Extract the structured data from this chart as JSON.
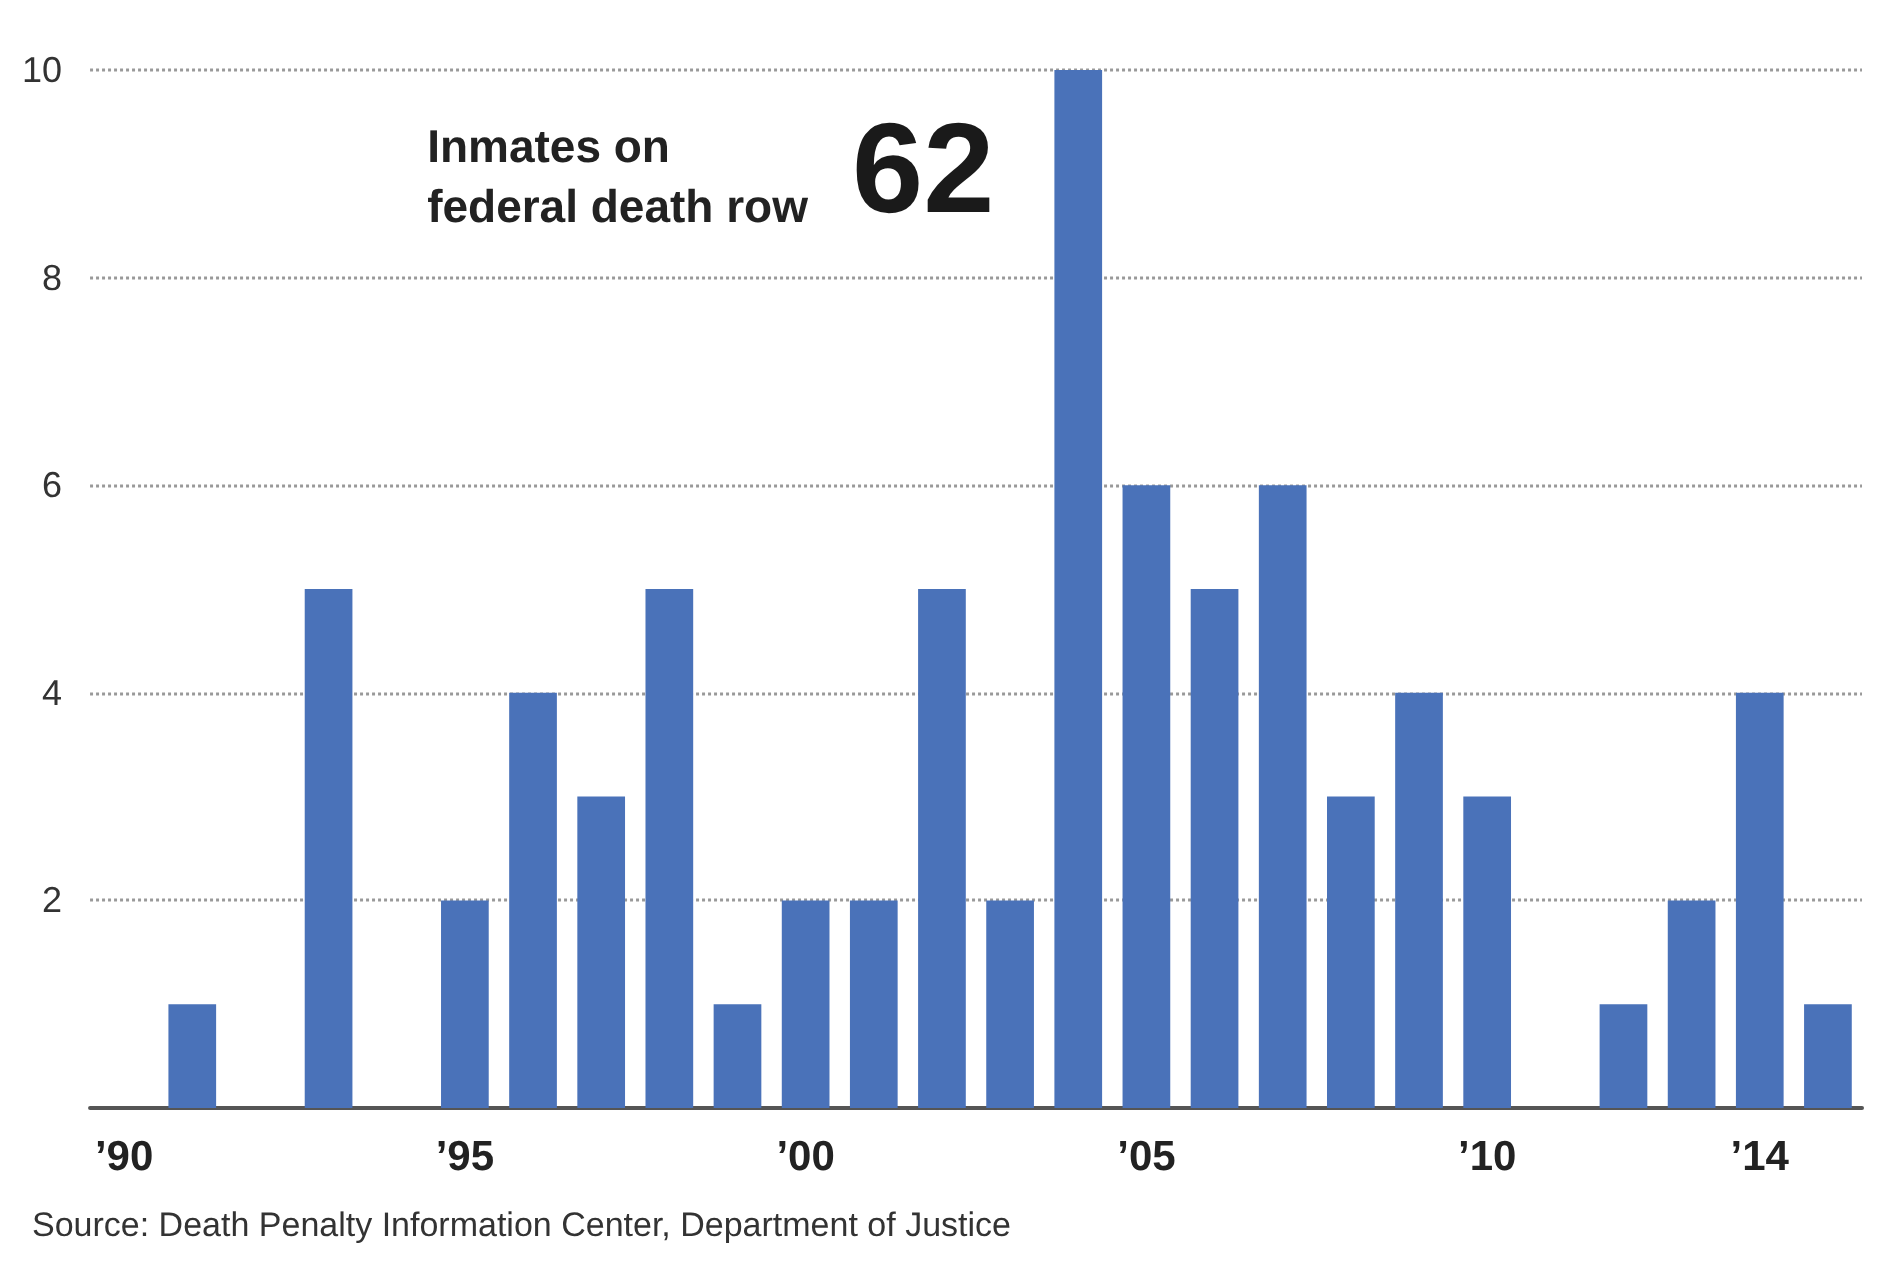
{
  "chart_data": {
    "type": "bar",
    "categories": [
      "’90",
      null,
      null,
      null,
      null,
      "’95",
      null,
      null,
      null,
      null,
      "’00",
      null,
      null,
      null,
      null,
      "’05",
      null,
      null,
      null,
      null,
      "’10",
      null,
      null,
      null,
      "’14",
      null
    ],
    "values": [
      null,
      1,
      null,
      5,
      null,
      2,
      4,
      3,
      5,
      1,
      2,
      2,
      5,
      2,
      10,
      6,
      5,
      6,
      3,
      4,
      3,
      null,
      1,
      2,
      4,
      1
    ],
    "color": "#4a72b9",
    "ylim": [
      0,
      10
    ],
    "yticks": [
      2,
      4,
      6,
      8,
      10
    ],
    "grid": "y",
    "annotations": [
      "Inmates on\nfederal death row",
      "62",
      "Source: Death Penalty Information Center, Department of Justice"
    ]
  }
}
